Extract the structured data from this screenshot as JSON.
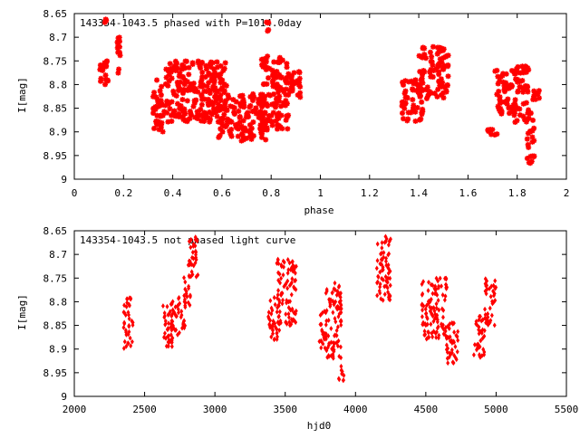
{
  "chart_data": [
    {
      "type": "scatter",
      "title": "143354-1043.5 phased with P=1014.0day",
      "xlabel": "phase",
      "ylabel": "I[mag]",
      "xlim": [
        0,
        2
      ],
      "ylim": [
        9,
        8.65
      ],
      "y_inverted": true,
      "x_ticks": [
        "0",
        "0.2",
        "0.4",
        "0.6",
        "0.8",
        "1",
        "1.2",
        "1.4",
        "1.6",
        "1.8",
        "2"
      ],
      "y_ticks": [
        "8.65",
        "8.7",
        "8.75",
        "8.8",
        "8.85",
        "8.9",
        "8.95",
        "9"
      ],
      "marker": "asterisk",
      "color": "#ff0000",
      "clusters": [
        {
          "x": [
            0.1,
            0.14
          ],
          "y": [
            8.74,
            8.8
          ]
        },
        {
          "x": [
            0.12,
            0.13
          ],
          "y": [
            8.66,
            8.67
          ]
        },
        {
          "x": [
            0.17,
            0.19
          ],
          "y": [
            8.7,
            8.78
          ]
        },
        {
          "x": [
            0.32,
            0.37
          ],
          "y": [
            8.79,
            8.9
          ]
        },
        {
          "x": [
            0.37,
            0.62
          ],
          "y": [
            8.75,
            8.88
          ]
        },
        {
          "x": [
            0.58,
            0.78
          ],
          "y": [
            8.82,
            8.92
          ]
        },
        {
          "x": [
            0.76,
            0.87
          ],
          "y": [
            8.74,
            8.9
          ]
        },
        {
          "x": [
            0.86,
            0.92
          ],
          "y": [
            8.77,
            8.83
          ]
        },
        {
          "x": [
            0.78,
            0.79
          ],
          "y": [
            8.66,
            8.69
          ]
        },
        {
          "x": [
            1.33,
            1.42
          ],
          "y": [
            8.79,
            8.88
          ]
        },
        {
          "x": [
            1.4,
            1.52
          ],
          "y": [
            8.72,
            8.83
          ]
        },
        {
          "x": [
            1.68,
            1.72
          ],
          "y": [
            8.89,
            8.91
          ]
        },
        {
          "x": [
            1.71,
            1.78
          ],
          "y": [
            8.77,
            8.87
          ]
        },
        {
          "x": [
            1.78,
            1.85
          ],
          "y": [
            8.76,
            8.88
          ]
        },
        {
          "x": [
            1.84,
            1.87
          ],
          "y": [
            8.86,
            8.97
          ]
        },
        {
          "x": [
            1.86,
            1.89
          ],
          "y": [
            8.81,
            8.84
          ]
        }
      ]
    },
    {
      "type": "scatter",
      "title": "143354-1043.5 not phased light curve",
      "xlabel": "hjd0",
      "ylabel": "I[mag]",
      "xlim": [
        2000,
        5500
      ],
      "ylim": [
        9,
        8.65
      ],
      "y_inverted": true,
      "x_ticks": [
        "2000",
        "2500",
        "3000",
        "3500",
        "4000",
        "4500",
        "5000",
        "5500"
      ],
      "y_ticks": [
        "8.65",
        "8.7",
        "8.75",
        "8.8",
        "8.85",
        "8.9",
        "8.95",
        "9"
      ],
      "marker": "diamond",
      "color": "#ff0000",
      "clusters": [
        {
          "x": [
            2350,
            2420
          ],
          "y": [
            8.79,
            8.9
          ]
        },
        {
          "x": [
            2630,
            2700
          ],
          "y": [
            8.8,
            8.9
          ]
        },
        {
          "x": [
            2690,
            2790
          ],
          "y": [
            8.79,
            8.87
          ]
        },
        {
          "x": [
            2780,
            2830
          ],
          "y": [
            8.74,
            8.81
          ]
        },
        {
          "x": [
            2810,
            2880
          ],
          "y": [
            8.66,
            8.76
          ]
        },
        {
          "x": [
            3380,
            3460
          ],
          "y": [
            8.79,
            8.88
          ]
        },
        {
          "x": [
            3440,
            3580
          ],
          "y": [
            8.71,
            8.85
          ]
        },
        {
          "x": [
            3740,
            3780
          ],
          "y": [
            8.82,
            8.9
          ]
        },
        {
          "x": [
            3780,
            3900
          ],
          "y": [
            8.76,
            8.92
          ]
        },
        {
          "x": [
            3880,
            3920
          ],
          "y": [
            8.93,
            8.97
          ]
        },
        {
          "x": [
            4150,
            4250
          ],
          "y": [
            8.66,
            8.8
          ]
        },
        {
          "x": [
            4470,
            4650
          ],
          "y": [
            8.75,
            8.88
          ]
        },
        {
          "x": [
            4640,
            4730
          ],
          "y": [
            8.84,
            8.93
          ]
        },
        {
          "x": [
            4840,
            4920
          ],
          "y": [
            8.83,
            8.92
          ]
        },
        {
          "x": [
            4920,
            5000
          ],
          "y": [
            8.75,
            8.85
          ]
        }
      ]
    }
  ]
}
